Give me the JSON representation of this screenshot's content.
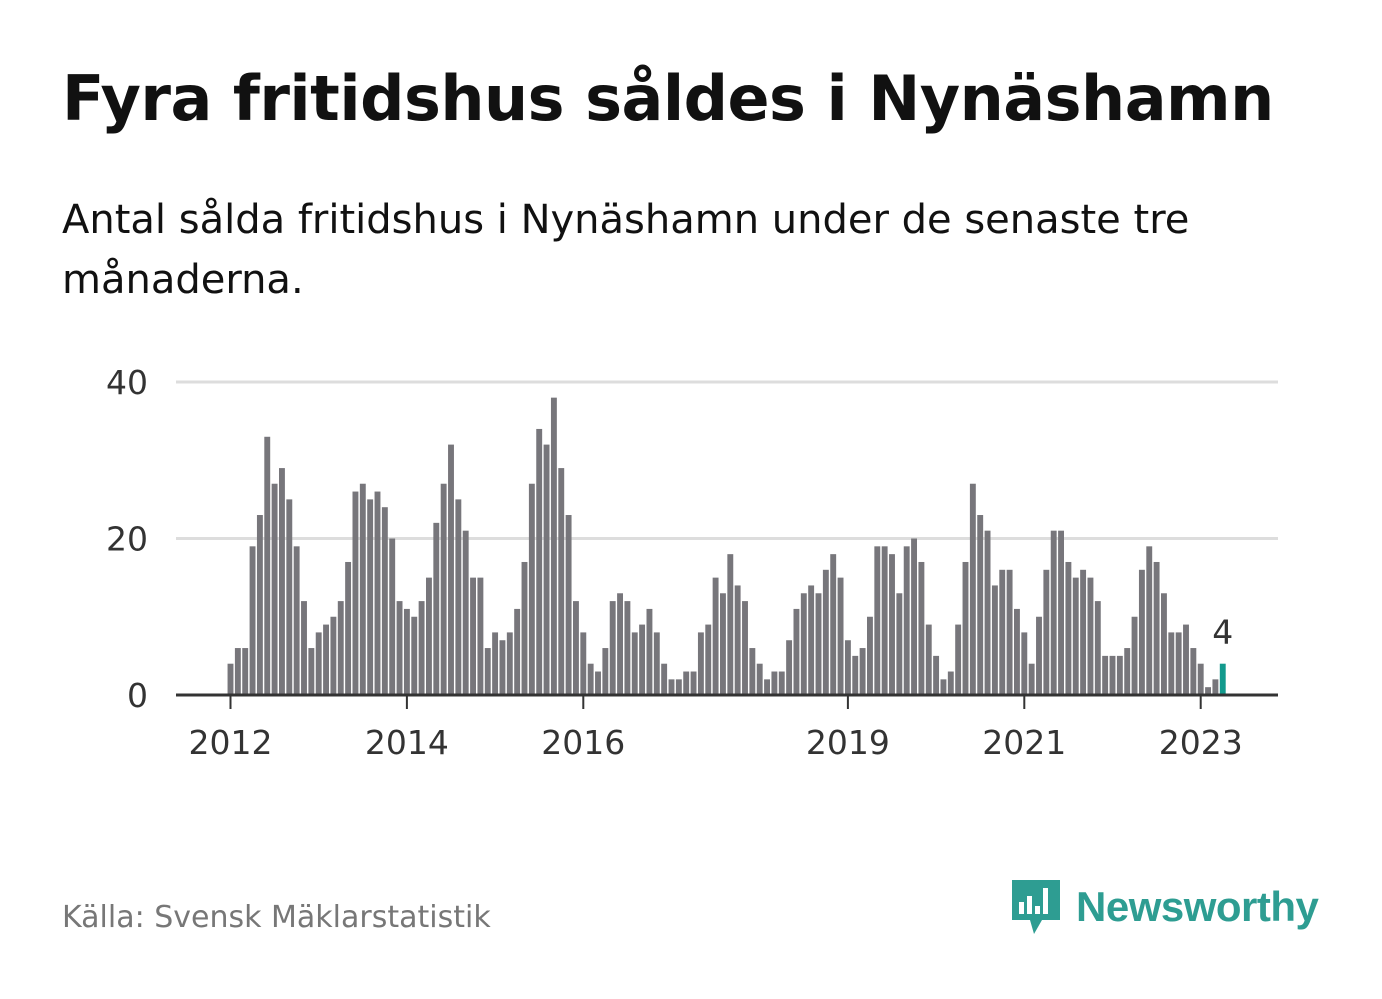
{
  "title": "Fyra fritidshus såldes i Nynäshamn",
  "subtitle": "Antal sålda fritidshus i Nynäshamn under de senaste tre månaderna.",
  "source": "Källa: Svensk Mäklarstatistik",
  "brand": {
    "name": "Newsworthy",
    "icon": "newsworthy-logo-icon",
    "color": "#2e9d92"
  },
  "chart_data": {
    "type": "bar",
    "x_start": "2012-01",
    "values": [
      4,
      6,
      6,
      19,
      23,
      33,
      27,
      29,
      25,
      19,
      12,
      6,
      8,
      9,
      10,
      12,
      17,
      26,
      27,
      25,
      26,
      24,
      20,
      12,
      11,
      10,
      12,
      15,
      22,
      27,
      32,
      25,
      21,
      15,
      15,
      6,
      8,
      7,
      8,
      11,
      17,
      27,
      34,
      32,
      38,
      29,
      23,
      12,
      8,
      4,
      3,
      6,
      12,
      13,
      12,
      8,
      9,
      11,
      8,
      4,
      2,
      2,
      3,
      3,
      8,
      9,
      15,
      13,
      18,
      14,
      12,
      6,
      4,
      2,
      3,
      3,
      7,
      11,
      13,
      14,
      13,
      16,
      18,
      15,
      7,
      5,
      6,
      10,
      19,
      19,
      18,
      13,
      19,
      20,
      17,
      9,
      5,
      2,
      3,
      9,
      17,
      27,
      23,
      21,
      14,
      16,
      16,
      11,
      8,
      4,
      10,
      16,
      21,
      21,
      17,
      15,
      16,
      15,
      12,
      5,
      5,
      5,
      6,
      10,
      16,
      19,
      17,
      13,
      8,
      8,
      9,
      6,
      4,
      1,
      2,
      4
    ],
    "highlight_value": "4",
    "y_ticks": [
      "0",
      "20",
      "40"
    ],
    "ylim": [
      0,
      40
    ],
    "x_ticks": [
      {
        "label": "2012",
        "date": "2012-01"
      },
      {
        "label": "2014",
        "date": "2014-01"
      },
      {
        "label": "2016",
        "date": "2016-01"
      },
      {
        "label": "2019",
        "date": "2019-01"
      },
      {
        "label": "2021",
        "date": "2021-01"
      },
      {
        "label": "2023",
        "date": "2023-01"
      }
    ],
    "colors": {
      "bar": "#77767b",
      "highlight": "#139a8d",
      "grid": "#dddddd",
      "axis": "#333333"
    },
    "grid": true
  }
}
